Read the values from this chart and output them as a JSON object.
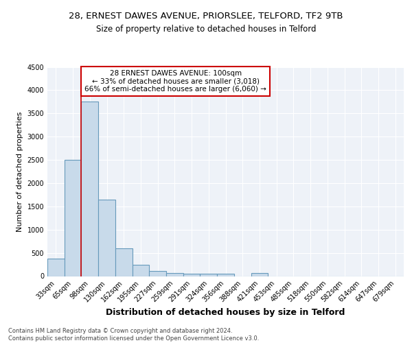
{
  "title1": "28, ERNEST DAWES AVENUE, PRIORSLEE, TELFORD, TF2 9TB",
  "title2": "Size of property relative to detached houses in Telford",
  "xlabel": "Distribution of detached houses by size in Telford",
  "ylabel": "Number of detached properties",
  "categories": [
    "33sqm",
    "65sqm",
    "98sqm",
    "130sqm",
    "162sqm",
    "195sqm",
    "227sqm",
    "259sqm",
    "291sqm",
    "324sqm",
    "356sqm",
    "388sqm",
    "421sqm",
    "453sqm",
    "485sqm",
    "518sqm",
    "550sqm",
    "582sqm",
    "614sqm",
    "647sqm",
    "679sqm"
  ],
  "values": [
    380,
    2500,
    3750,
    1650,
    600,
    240,
    110,
    70,
    50,
    50,
    50,
    0,
    70,
    0,
    0,
    0,
    0,
    0,
    0,
    0,
    0
  ],
  "bar_color": "#c8daea",
  "bar_edge_color": "#6699bb",
  "highlight_index": 2,
  "highlight_color": "#cc0000",
  "ylim": [
    0,
    4500
  ],
  "yticks": [
    0,
    500,
    1000,
    1500,
    2000,
    2500,
    3000,
    3500,
    4000,
    4500
  ],
  "annotation_text": "28 ERNEST DAWES AVENUE: 100sqm\n← 33% of detached houses are smaller (3,018)\n66% of semi-detached houses are larger (6,060) →",
  "annotation_box_color": "#ffffff",
  "annotation_border_color": "#cc0000",
  "footer_text": "Contains HM Land Registry data © Crown copyright and database right 2024.\nContains public sector information licensed under the Open Government Licence v3.0.",
  "bg_color": "#eef2f8",
  "grid_color": "#ffffff",
  "title1_fontsize": 9.5,
  "title2_fontsize": 8.5,
  "xlabel_fontsize": 9,
  "ylabel_fontsize": 8,
  "annot_fontsize": 7.5,
  "footer_fontsize": 6,
  "tick_fontsize": 7
}
